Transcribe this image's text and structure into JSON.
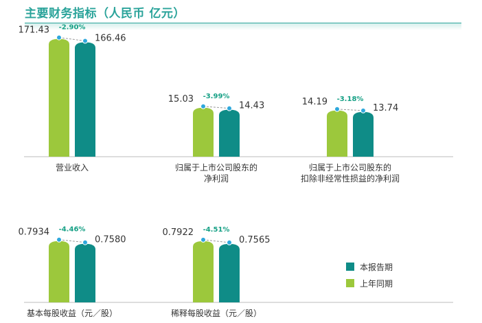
{
  "title": "主要财务指标（人民币 亿元）",
  "colors": {
    "current": "#0f8c87",
    "previous": "#9cc83c",
    "change_text": "#16a085",
    "dot_current": "#2fa8dc",
    "dot_previous": "#2fa8dc",
    "title": "#2aa39a",
    "dashed": "#999999"
  },
  "legend": {
    "current": "本报告期",
    "previous": "上年同期"
  },
  "chart_data": [
    {
      "type": "bar",
      "metric": "营业收入",
      "series": [
        {
          "name": "上年同期",
          "values": [
            171.43
          ]
        },
        {
          "name": "本报告期",
          "values": [
            166.46
          ]
        }
      ],
      "labels": {
        "previous": "171.43",
        "current": "166.46",
        "change": "-2.90%"
      },
      "ylim": [
        0,
        180
      ]
    },
    {
      "type": "bar",
      "metric": "归属于上市公司股东的净利润",
      "category_lines": [
        "归属于上市公司股东的",
        "净利润"
      ],
      "series": [
        {
          "name": "上年同期",
          "values": [
            15.03
          ]
        },
        {
          "name": "本报告期",
          "values": [
            14.43
          ]
        }
      ],
      "labels": {
        "previous": "15.03",
        "current": "14.43",
        "change": "-3.99%"
      },
      "ylim": [
        0,
        38
      ]
    },
    {
      "type": "bar",
      "metric": "归属于上市公司股东的扣除非经常性损益的净利润",
      "category_lines": [
        "归属于上市公司股东的",
        "扣除非经常性损益的净利润"
      ],
      "series": [
        {
          "name": "上年同期",
          "values": [
            14.19
          ]
        },
        {
          "name": "本报告期",
          "values": [
            13.74
          ]
        }
      ],
      "labels": {
        "previous": "14.19",
        "current": "13.74",
        "change": "-3.18%"
      },
      "ylim": [
        0,
        38
      ]
    },
    {
      "type": "bar",
      "metric": "基本每股收益（元／股）",
      "series": [
        {
          "name": "上年同期",
          "values": [
            0.7934
          ]
        },
        {
          "name": "本报告期",
          "values": [
            0.758
          ]
        }
      ],
      "labels": {
        "previous": "0.7934",
        "current": "0.7580",
        "change": "-4.46%"
      },
      "ylim": [
        0,
        0.8
      ]
    },
    {
      "type": "bar",
      "metric": "稀释每股收益（元／股）",
      "series": [
        {
          "name": "上年同期",
          "values": [
            0.7922
          ]
        },
        {
          "name": "本报告期",
          "values": [
            0.7565
          ]
        }
      ],
      "labels": {
        "previous": "0.7922",
        "current": "0.7565",
        "change": "-4.51%"
      },
      "ylim": [
        0,
        0.8
      ]
    }
  ]
}
